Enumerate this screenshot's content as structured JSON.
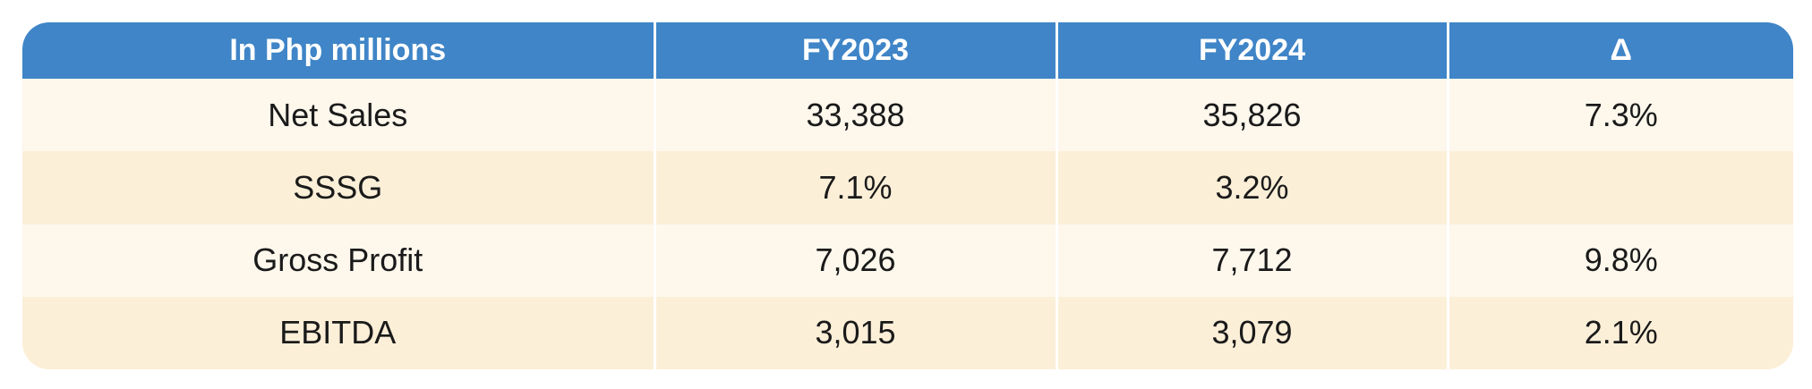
{
  "table": {
    "headers": [
      "In Php millions",
      "FY2023",
      "FY2024",
      "Δ"
    ],
    "rows": [
      [
        "Net Sales",
        "33,388",
        "35,826",
        "7.3%"
      ],
      [
        "SSSG",
        "7.1%",
        "3.2%",
        ""
      ],
      [
        "Gross Profit",
        "7,026",
        "7,712",
        "9.8%"
      ],
      [
        "EBITDA",
        "3,015",
        "3,079",
        "2.1%"
      ]
    ]
  },
  "colors": {
    "header_bg": "#3f85c7",
    "row_light": "#fdf7ec",
    "row_dark": "#fcefd8"
  }
}
